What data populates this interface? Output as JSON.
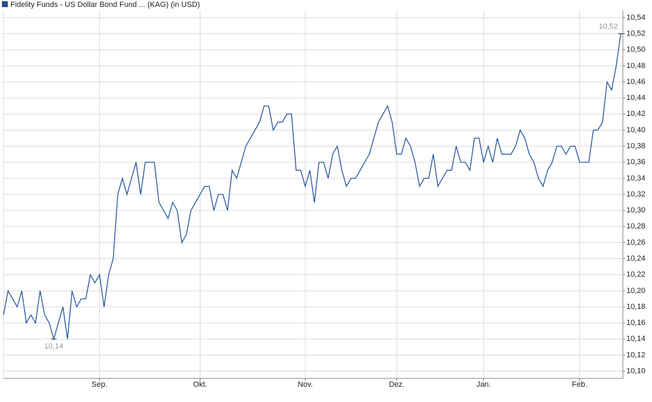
{
  "chart_data": {
    "type": "line",
    "legend": "top-left",
    "grid": true,
    "series": [
      {
        "name": "Fidelity Funds - US Dollar Bond Fund ... (KAG) (in USD)",
        "color": "#1c4f9c",
        "values": [
          10.17,
          10.2,
          10.19,
          10.18,
          10.2,
          10.16,
          10.17,
          10.16,
          10.2,
          10.17,
          10.16,
          10.14,
          10.16,
          10.18,
          10.14,
          10.2,
          10.18,
          10.19,
          10.19,
          10.22,
          10.21,
          10.22,
          10.18,
          10.22,
          10.24,
          10.32,
          10.34,
          10.32,
          10.34,
          10.36,
          10.32,
          10.36,
          10.36,
          10.36,
          10.31,
          10.3,
          10.29,
          10.31,
          10.3,
          10.26,
          10.27,
          10.3,
          10.31,
          10.32,
          10.33,
          10.33,
          10.3,
          10.32,
          10.32,
          10.3,
          10.35,
          10.34,
          10.36,
          10.38,
          10.39,
          10.4,
          10.41,
          10.43,
          10.43,
          10.4,
          10.41,
          10.41,
          10.42,
          10.42,
          10.35,
          10.35,
          10.33,
          10.35,
          10.31,
          10.36,
          10.36,
          10.34,
          10.37,
          10.38,
          10.35,
          10.33,
          10.34,
          10.34,
          10.35,
          10.36,
          10.37,
          10.39,
          10.41,
          10.42,
          10.43,
          10.41,
          10.37,
          10.37,
          10.39,
          10.38,
          10.36,
          10.33,
          10.34,
          10.34,
          10.37,
          10.33,
          10.34,
          10.35,
          10.35,
          10.38,
          10.36,
          10.36,
          10.35,
          10.39,
          10.39,
          10.36,
          10.38,
          10.36,
          10.39,
          10.37,
          10.37,
          10.37,
          10.38,
          10.4,
          10.39,
          10.37,
          10.36,
          10.34,
          10.33,
          10.35,
          10.36,
          10.38,
          10.38,
          10.37,
          10.38,
          10.38,
          10.36,
          10.36,
          10.36,
          10.4,
          10.4,
          10.41,
          10.46,
          10.45,
          10.48,
          10.52
        ],
        "value_labels": [
          null,
          null,
          null,
          null,
          null,
          null,
          null,
          null,
          null,
          null,
          null,
          "10,14",
          null,
          null,
          null,
          null,
          null,
          null,
          null,
          null,
          null,
          null,
          null,
          null,
          null,
          null,
          null,
          null,
          null,
          null,
          null,
          null,
          null,
          null,
          null,
          null,
          null,
          null,
          null,
          null,
          null,
          null,
          null,
          null,
          null,
          null,
          null,
          null,
          null,
          null,
          null,
          null,
          null,
          null,
          null,
          null,
          null,
          null,
          null,
          null,
          null,
          null,
          null,
          null,
          null,
          null,
          null,
          null,
          null,
          null,
          null,
          null,
          null,
          null,
          null,
          null,
          null,
          null,
          null,
          null,
          null,
          null,
          null,
          null,
          null,
          null,
          null,
          null,
          null,
          null,
          null,
          null,
          null,
          null,
          null,
          null,
          null,
          null,
          null,
          null,
          null,
          null,
          null,
          null,
          null,
          null,
          null,
          null,
          null,
          null,
          null,
          null,
          null,
          null,
          null,
          null,
          null,
          null,
          null,
          null,
          null,
          null,
          null,
          null,
          null,
          null,
          null,
          null,
          null,
          null,
          null,
          null,
          null,
          null,
          null,
          "10,52"
        ]
      }
    ],
    "categories": [
      null,
      null,
      null,
      null,
      null,
      null,
      null,
      null,
      null,
      null,
      null,
      null,
      null,
      null,
      null,
      null,
      null,
      null,
      null,
      null,
      null,
      "Sep.",
      null,
      null,
      null,
      null,
      null,
      null,
      null,
      null,
      null,
      null,
      null,
      null,
      null,
      null,
      null,
      null,
      null,
      null,
      null,
      null,
      null,
      "Okt.",
      null,
      null,
      null,
      null,
      null,
      null,
      null,
      null,
      null,
      null,
      null,
      null,
      null,
      null,
      null,
      null,
      null,
      null,
      null,
      null,
      null,
      null,
      "Nov.",
      null,
      null,
      null,
      null,
      null,
      null,
      null,
      null,
      null,
      null,
      null,
      null,
      null,
      null,
      null,
      null,
      null,
      null,
      null,
      "Dez.",
      null,
      null,
      null,
      null,
      null,
      null,
      null,
      null,
      null,
      null,
      null,
      null,
      null,
      null,
      null,
      null,
      null,
      null,
      "Jan.",
      null,
      null,
      null,
      null,
      null,
      null,
      null,
      null,
      null,
      null,
      null,
      null,
      null,
      null,
      null,
      null,
      null,
      null,
      null,
      null,
      "Feb.",
      null,
      null,
      null,
      null,
      null,
      null,
      null,
      null,
      null
    ],
    "ylim": [
      10.091,
      10.549
    ],
    "yticks": [
      {
        "value": 10.1,
        "label": "10,10"
      },
      {
        "value": 10.12,
        "label": "10,12"
      },
      {
        "value": 10.14,
        "label": "10,14"
      },
      {
        "value": 10.16,
        "label": "10,16"
      },
      {
        "value": 10.18,
        "label": "10,18"
      },
      {
        "value": 10.2,
        "label": "10,20"
      },
      {
        "value": 10.22,
        "label": "10,22"
      },
      {
        "value": 10.24,
        "label": "10,24"
      },
      {
        "value": 10.26,
        "label": "10,26"
      },
      {
        "value": 10.28,
        "label": "10,28"
      },
      {
        "value": 10.3,
        "label": "10,30"
      },
      {
        "value": 10.32,
        "label": "10,32"
      },
      {
        "value": 10.34,
        "label": "10,34"
      },
      {
        "value": 10.36,
        "label": "10,36"
      },
      {
        "value": 10.38,
        "label": "10,38"
      },
      {
        "value": 10.4,
        "label": "10,40"
      },
      {
        "value": 10.42,
        "label": "10,42"
      },
      {
        "value": 10.44,
        "label": "10,44"
      },
      {
        "value": 10.46,
        "label": "10,46"
      },
      {
        "value": 10.48,
        "label": "10,48"
      },
      {
        "value": 10.5,
        "label": "10,50"
      },
      {
        "value": 10.52,
        "label": "10,52"
      },
      {
        "value": 10.54,
        "label": "10,54"
      }
    ]
  }
}
